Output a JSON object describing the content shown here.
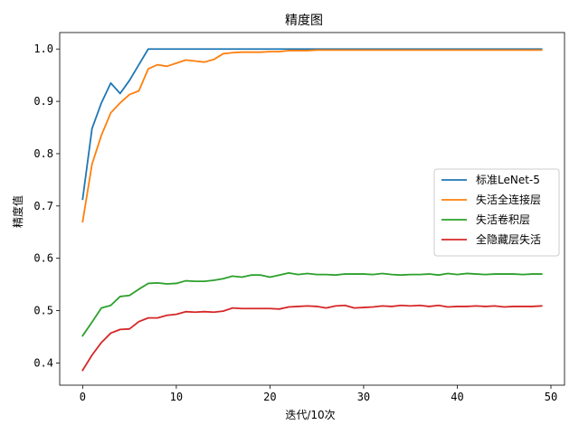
{
  "chart_data": {
    "type": "line",
    "title": "精度图",
    "xlabel": "迭代/10次",
    "ylabel": "精度值",
    "xlim": [
      -2.45,
      51.45
    ],
    "ylim": [
      0.3575,
      1.0315
    ],
    "xticks": [
      0,
      10,
      20,
      30,
      40,
      50
    ],
    "yticks": [
      0.4,
      0.5,
      0.6,
      0.7,
      0.8,
      0.9,
      1.0
    ],
    "xtick_labels": [
      "0",
      "10",
      "20",
      "30",
      "40",
      "50"
    ],
    "ytick_labels": [
      "0.4",
      "0.5",
      "0.6",
      "0.7",
      "0.8",
      "0.9",
      "1.0"
    ],
    "grid": false,
    "legend_position": "center-right",
    "x": [
      0,
      1,
      2,
      3,
      4,
      5,
      6,
      7,
      8,
      9,
      10,
      11,
      12,
      13,
      14,
      15,
      16,
      17,
      18,
      19,
      20,
      21,
      22,
      23,
      24,
      25,
      26,
      27,
      28,
      29,
      30,
      31,
      32,
      33,
      34,
      35,
      36,
      37,
      38,
      39,
      40,
      41,
      42,
      43,
      44,
      45,
      46,
      47,
      48,
      49
    ],
    "series": [
      {
        "name": "标准LeNet-5",
        "color": "#1f77b4",
        "values": [
          0.713,
          0.848,
          0.897,
          0.935,
          0.915,
          0.94,
          0.97,
          1.0,
          1.0,
          1.0,
          1.0,
          1.0,
          1.0,
          1.0,
          1.0,
          1.0,
          1.0,
          1.0,
          1.0,
          1.0,
          1.0,
          1.0,
          1.0,
          1.0,
          1.0,
          1.0,
          1.0,
          1.0,
          1.0,
          1.0,
          1.0,
          1.0,
          1.0,
          1.0,
          1.0,
          1.0,
          1.0,
          1.0,
          1.0,
          1.0,
          1.0,
          1.0,
          1.0,
          1.0,
          1.0,
          1.0,
          1.0,
          1.0,
          1.0,
          1.0
        ]
      },
      {
        "name": "失活全连接层",
        "color": "#ff7f0e",
        "values": [
          0.67,
          0.78,
          0.835,
          0.878,
          0.897,
          0.913,
          0.92,
          0.962,
          0.97,
          0.967,
          0.973,
          0.979,
          0.977,
          0.975,
          0.98,
          0.991,
          0.993,
          0.994,
          0.994,
          0.994,
          0.995,
          0.995,
          0.997,
          0.997,
          0.997,
          0.998,
          0.998,
          0.998,
          0.998,
          0.998,
          0.998,
          0.998,
          0.998,
          0.998,
          0.998,
          0.998,
          0.998,
          0.998,
          0.998,
          0.998,
          0.998,
          0.998,
          0.998,
          0.998,
          0.998,
          0.998,
          0.998,
          0.998,
          0.998,
          0.998
        ]
      },
      {
        "name": "失活卷积层",
        "color": "#2ca02c",
        "values": [
          0.452,
          0.478,
          0.505,
          0.51,
          0.527,
          0.529,
          0.541,
          0.552,
          0.553,
          0.551,
          0.552,
          0.557,
          0.556,
          0.556,
          0.558,
          0.561,
          0.566,
          0.564,
          0.568,
          0.568,
          0.564,
          0.568,
          0.572,
          0.569,
          0.571,
          0.569,
          0.569,
          0.568,
          0.57,
          0.57,
          0.57,
          0.569,
          0.571,
          0.569,
          0.568,
          0.569,
          0.569,
          0.57,
          0.568,
          0.571,
          0.569,
          0.571,
          0.57,
          0.569,
          0.57,
          0.57,
          0.57,
          0.569,
          0.57,
          0.57
        ]
      },
      {
        "name": "全隐藏层失活",
        "color": "#d62728",
        "values": [
          0.386,
          0.415,
          0.439,
          0.457,
          0.464,
          0.465,
          0.479,
          0.486,
          0.486,
          0.491,
          0.493,
          0.498,
          0.497,
          0.498,
          0.497,
          0.499,
          0.505,
          0.504,
          0.504,
          0.504,
          0.504,
          0.503,
          0.507,
          0.508,
          0.509,
          0.508,
          0.505,
          0.509,
          0.51,
          0.505,
          0.506,
          0.507,
          0.509,
          0.508,
          0.51,
          0.509,
          0.51,
          0.508,
          0.51,
          0.507,
          0.508,
          0.508,
          0.509,
          0.508,
          0.509,
          0.507,
          0.508,
          0.508,
          0.508,
          0.509
        ]
      }
    ]
  }
}
